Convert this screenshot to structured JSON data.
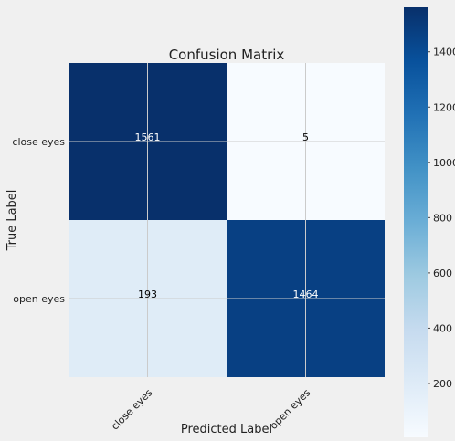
{
  "chart_data": {
    "type": "heatmap",
    "title": "Confusion Matrix",
    "xlabel": "Predicted Label",
    "ylabel": "True Label",
    "x_categories": [
      "close eyes",
      "open eyes"
    ],
    "y_categories": [
      "close eyes",
      "open eyes"
    ],
    "values": [
      [
        1561,
        5
      ],
      [
        193,
        1464
      ]
    ],
    "colorbar": {
      "ticks": [
        200,
        400,
        600,
        800,
        1000,
        1200,
        1400
      ],
      "range": [
        5,
        1561
      ],
      "colormap": "Blues"
    },
    "grid": true
  },
  "colors": {
    "figure_bg": "#f0f0f0",
    "grid": "#cbcbcb",
    "text": "#222222",
    "low": "#f7fbff",
    "high": "#08306b"
  }
}
